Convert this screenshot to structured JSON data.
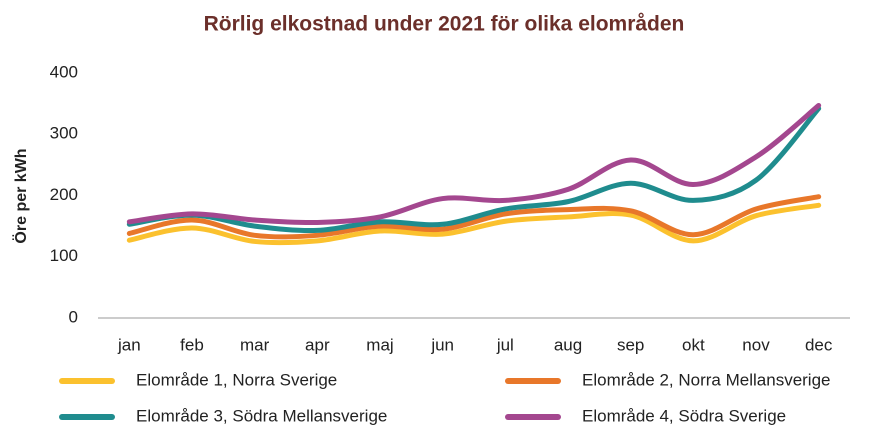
{
  "chart_data": {
    "type": "line",
    "title": "Rörlig elkostnad under 2021 för olika elområden",
    "y_label": "Öre per kWh",
    "categories": [
      "jan",
      "feb",
      "mar",
      "apr",
      "maj",
      "jun",
      "jul",
      "aug",
      "sep",
      "okt",
      "nov",
      "dec"
    ],
    "series": [
      {
        "name": "Elområde 1, Norra Sverige",
        "color": "#fbc12e",
        "values": [
          127,
          147,
          125,
          126,
          142,
          137,
          158,
          165,
          168,
          126,
          167,
          184
        ]
      },
      {
        "name": "Elområde 2, Norra Mellansverige",
        "color": "#e8772a",
        "values": [
          138,
          160,
          135,
          135,
          150,
          145,
          170,
          177,
          175,
          136,
          178,
          198
        ]
      },
      {
        "name": "Elområde 3, Södra Mellansverige",
        "color": "#1f8c8e",
        "values": [
          153,
          168,
          150,
          143,
          157,
          153,
          178,
          190,
          220,
          192,
          225,
          342
        ]
      },
      {
        "name": "Elområde 4, Södra Sverige",
        "color": "#a4478f",
        "values": [
          157,
          170,
          160,
          156,
          165,
          195,
          192,
          210,
          258,
          218,
          263,
          347
        ]
      }
    ],
    "ylim": [
      0,
      400
    ],
    "yticks": [
      0,
      100,
      200,
      300,
      400
    ],
    "grid": false,
    "legend": "bottom"
  }
}
